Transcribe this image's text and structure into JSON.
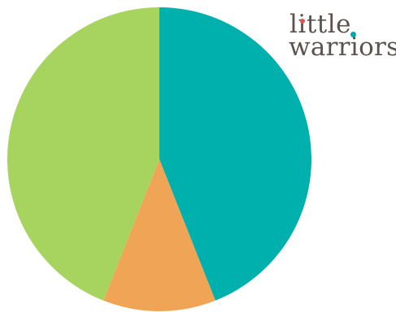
{
  "logo": {
    "line1": "little",
    "line2": "warriors",
    "dot_colors": [
      "#e0524a",
      "#00a8a8"
    ]
  },
  "chart_data": {
    "type": "pie",
    "title": "",
    "start_angle_deg": 0,
    "direction": "clockwise",
    "slices": [
      {
        "label": "",
        "value": 44,
        "color": "#00b0ad"
      },
      {
        "label": "",
        "value": 12,
        "color": "#f0a456"
      },
      {
        "label": "",
        "value": 44,
        "color": "#a6d45f"
      }
    ]
  }
}
